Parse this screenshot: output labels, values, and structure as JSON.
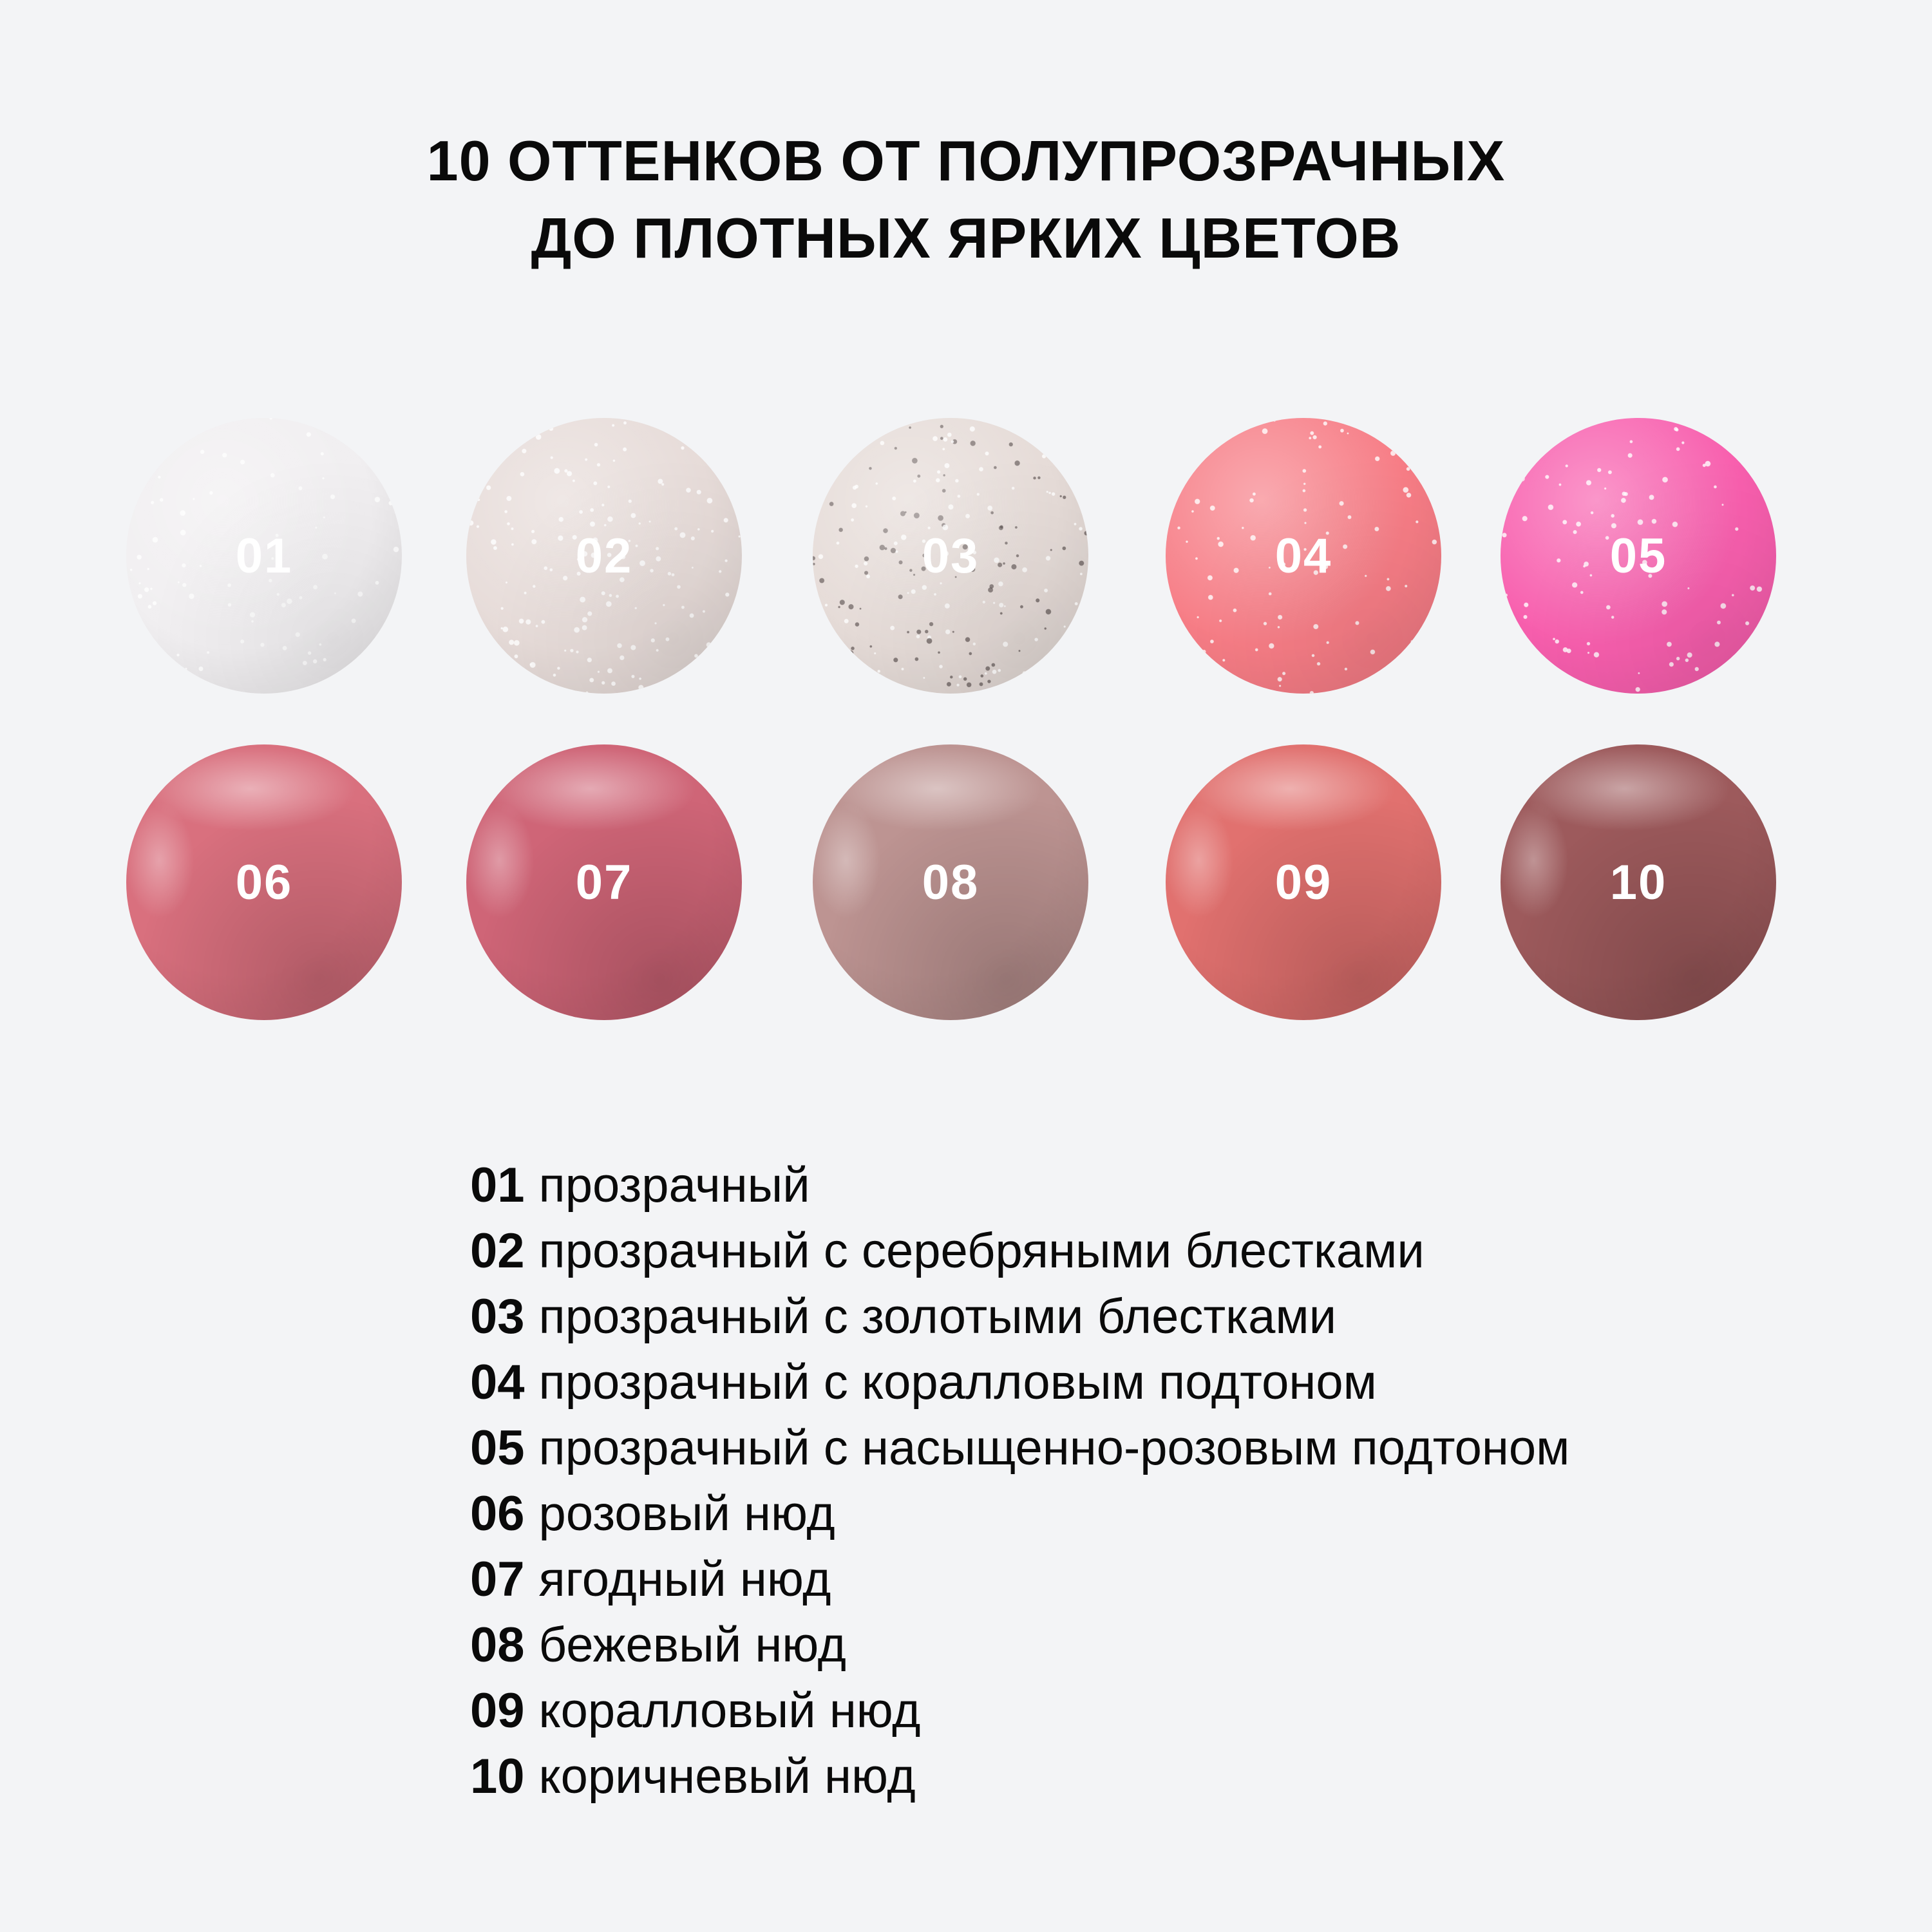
{
  "title": {
    "line1": "10 ОТТЕНКОВ ОТ ПОЛУПРОЗРАЧНЫХ",
    "line2": "ДО ПЛОТНЫХ ЯРКИХ ЦВЕТОВ"
  },
  "swatches": [
    {
      "code": "01",
      "color": "#f1eff1"
    },
    {
      "code": "02",
      "color": "#e7dcd9"
    },
    {
      "code": "03",
      "color": "#e6dcd8"
    },
    {
      "code": "04",
      "color": "#f77d86"
    },
    {
      "code": "05",
      "color": "#f85fae"
    },
    {
      "code": "06",
      "color": "#d9707e"
    },
    {
      "code": "07",
      "color": "#cf6577"
    },
    {
      "code": "08",
      "color": "#bd9492"
    },
    {
      "code": "09",
      "color": "#e1716f"
    },
    {
      "code": "10",
      "color": "#9d5a5c"
    }
  ],
  "legend": [
    {
      "code": "01",
      "desc": "прозрачный"
    },
    {
      "code": "02",
      "desc": "прозрачный с серебряными блестками"
    },
    {
      "code": "03",
      "desc": "прозрачный с золотыми блестками"
    },
    {
      "code": "04",
      "desc": "прозрачный с коралловым подтоном"
    },
    {
      "code": "05",
      "desc": "прозрачный с насыщенно-розовым подтоном"
    },
    {
      "code": "06",
      "desc": "розовый нюд"
    },
    {
      "code": "07",
      "desc": "ягодный нюд"
    },
    {
      "code": "08",
      "desc": "бежевый нюд"
    },
    {
      "code": "09",
      "desc": "коралловый нюд"
    },
    {
      "code": "10",
      "desc": "коричневый нюд"
    }
  ]
}
